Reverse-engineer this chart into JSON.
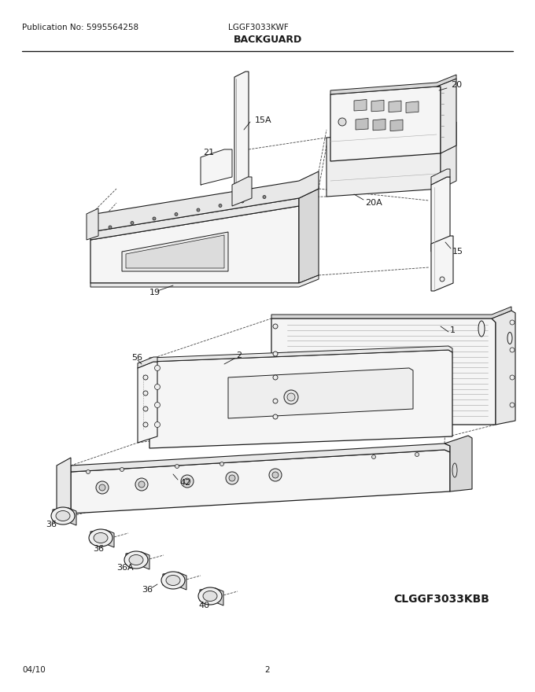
{
  "page_title": "BACKGUARD",
  "publication": "Publication No: 5995564258",
  "model": "LGGF3033KWF",
  "date": "04/10",
  "page_num": "2",
  "clggf_model": "CLGGF3033KBB",
  "bg_color": "#ffffff",
  "line_color": "#1a1a1a",
  "text_color": "#1a1a1a",
  "title_fontsize": 9,
  "label_fontsize": 8,
  "small_fontsize": 7.5,
  "face_color": "#f5f5f5",
  "side_color": "#e8e8e8",
  "dark_color": "#d8d8d8"
}
